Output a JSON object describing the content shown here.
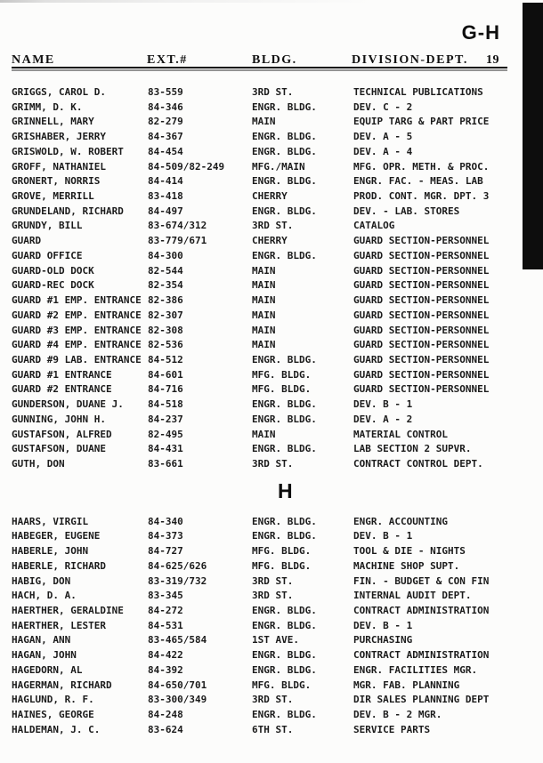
{
  "page": {
    "index_tab": "G-H",
    "page_number": "19"
  },
  "columns": {
    "name": "NAME",
    "ext": "EXT.#",
    "bldg": "BLDG.",
    "division": "DIVISION-DEPT."
  },
  "sections": [
    {
      "heading": null,
      "rows": [
        [
          "GRIGGS, CAROL D.",
          "83-559",
          "3RD ST.",
          "TECHNICAL PUBLICATIONS"
        ],
        [
          "GRIMM, D. K.",
          "84-346",
          "ENGR. BLDG.",
          "DEV. C - 2"
        ],
        [
          "GRINNELL, MARY",
          "82-279",
          "MAIN",
          "EQUIP TARG & PART PRICE"
        ],
        [
          "GRISHABER, JERRY",
          "84-367",
          "ENGR. BLDG.",
          "DEV. A - 5"
        ],
        [
          "GRISWOLD, W. ROBERT",
          "84-454",
          "ENGR. BLDG.",
          "DEV. A - 4"
        ],
        [
          "GROFF, NATHANIEL",
          "84-509/82-249",
          "MFG./MAIN",
          "MFG. OPR. METH. & PROC."
        ],
        [
          "GRONERT, NORRIS",
          "84-414",
          "ENGR. BLDG.",
          "ENGR. FAC. - MEAS. LAB"
        ],
        [
          "GROVE, MERRILL",
          "83-418",
          "CHERRY",
          "PROD. CONT. MGR. DPT. 3"
        ],
        [
          "GRUNDELAND, RICHARD",
          "84-497",
          "ENGR. BLDG.",
          "DEV. - LAB. STORES"
        ],
        [
          "GRUNDY, BILL",
          "83-674/312",
          "3RD ST.",
          "CATALOG"
        ],
        [
          "GUARD",
          "83-779/671",
          "CHERRY",
          "GUARD SECTION-PERSONNEL"
        ],
        [
          "GUARD OFFICE",
          "84-300",
          "ENGR. BLDG.",
          "GUARD SECTION-PERSONNEL"
        ],
        [
          "GUARD-OLD DOCK",
          "82-544",
          "MAIN",
          "GUARD SECTION-PERSONNEL"
        ],
        [
          "GUARD-REC DOCK",
          "82-354",
          "MAIN",
          "GUARD SECTION-PERSONNEL"
        ],
        [
          "GUARD #1 EMP. ENTRANCE",
          "82-386",
          "MAIN",
          "GUARD SECTION-PERSONNEL"
        ],
        [
          "GUARD #2 EMP. ENTRANCE",
          "82-307",
          "MAIN",
          "GUARD SECTION-PERSONNEL"
        ],
        [
          "GUARD #3 EMP. ENTRANCE",
          "82-308",
          "MAIN",
          "GUARD SECTION-PERSONNEL"
        ],
        [
          "GUARD #4 EMP. ENTRANCE",
          "82-536",
          "MAIN",
          "GUARD SECTION-PERSONNEL"
        ],
        [
          "GUARD #9 LAB. ENTRANCE",
          "84-512",
          "ENGR. BLDG.",
          "GUARD SECTION-PERSONNEL"
        ],
        [
          "GUARD #1 ENTRANCE",
          "84-601",
          "MFG. BLDG.",
          "GUARD SECTION-PERSONNEL"
        ],
        [
          "GUARD #2 ENTRANCE",
          "84-716",
          "MFG. BLDG.",
          "GUARD SECTION-PERSONNEL"
        ],
        [
          "GUNDERSON, DUANE J.",
          "84-518",
          "ENGR. BLDG.",
          "DEV. B - 1"
        ],
        [
          "GUNNING, JOHN H.",
          "84-237",
          "ENGR. BLDG.",
          "DEV. A - 2"
        ],
        [
          "GUSTAFSON, ALFRED",
          "82-495",
          "MAIN",
          "MATERIAL CONTROL"
        ],
        [
          "GUSTAFSON, DUANE",
          "84-431",
          "ENGR. BLDG.",
          "LAB SECTION 2 SUPVR."
        ],
        [
          "GUTH, DON",
          "83-661",
          "3RD ST.",
          "CONTRACT CONTROL DEPT."
        ]
      ]
    },
    {
      "heading": "H",
      "rows": [
        [
          "HAARS, VIRGIL",
          "84-340",
          "ENGR. BLDG.",
          "ENGR. ACCOUNTING"
        ],
        [
          "HABEGER, EUGENE",
          "84-373",
          "ENGR. BLDG.",
          "DEV. B - 1"
        ],
        [
          "HABERLE, JOHN",
          "84-727",
          "MFG. BLDG.",
          "TOOL & DIE - NIGHTS"
        ],
        [
          "HABERLE, RICHARD",
          "84-625/626",
          "MFG. BLDG.",
          "MACHINE SHOP SUPT."
        ],
        [
          "HABIG, DON",
          "83-319/732",
          "3RD ST.",
          "FIN. - BUDGET & CON FIN"
        ],
        [
          "HACH, D. A.",
          "83-345",
          "3RD ST.",
          "INTERNAL AUDIT DEPT."
        ],
        [
          "HAERTHER, GERALDINE",
          "84-272",
          "ENGR. BLDG.",
          "CONTRACT ADMINISTRATION"
        ],
        [
          "HAERTHER, LESTER",
          "84-531",
          "ENGR. BLDG.",
          "DEV. B - 1"
        ],
        [
          "HAGAN, ANN",
          "83-465/584",
          "1ST AVE.",
          "PURCHASING"
        ],
        [
          "HAGAN, JOHN",
          "84-422",
          "ENGR. BLDG.",
          "CONTRACT ADMINISTRATION"
        ],
        [
          "HAGEDORN, AL",
          "84-392",
          "ENGR. BLDG.",
          "ENGR. FACILITIES MGR."
        ],
        [
          "HAGERMAN, RICHARD",
          "84-650/701",
          "MFG. BLDG.",
          "MGR. FAB. PLANNING"
        ],
        [
          "HAGLUND, R. F.",
          "83-300/349",
          "3RD ST.",
          "DIR SALES PLANNING DEPT"
        ],
        [
          "HAINES, GEORGE",
          "84-248",
          "ENGR. BLDG.",
          "DEV. B - 2 MGR."
        ],
        [
          "HALDEMAN, J. C.",
          "83-624",
          "6TH ST.",
          "SERVICE PARTS"
        ]
      ]
    }
  ]
}
